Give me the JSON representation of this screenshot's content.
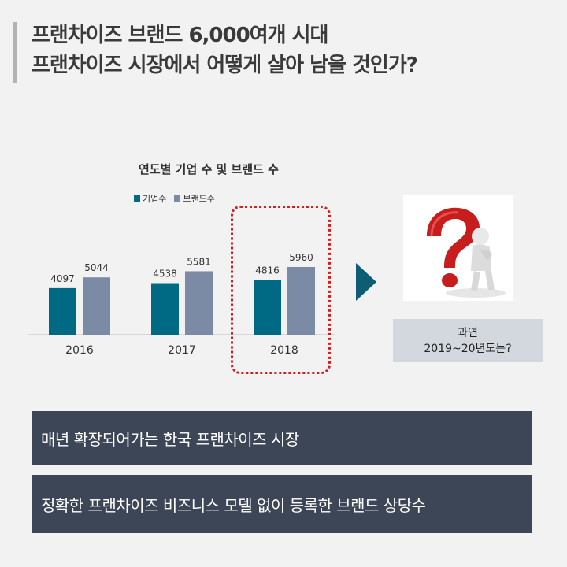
{
  "title": {
    "line1": "프랜차이즈 브랜드 6,000여개 시대",
    "line2": "프랜차이즈 시장에서 어떻게 살아 남을 것인가?"
  },
  "chart_data": {
    "type": "bar",
    "title": "연도별 기업 수 및 브랜드 수",
    "categories": [
      "2016",
      "2017",
      "2018"
    ],
    "series": [
      {
        "name": "기업수",
        "values": [
          4097,
          4538,
          4816
        ],
        "color": "#006a85"
      },
      {
        "name": "브랜드수",
        "values": [
          5044,
          5581,
          5960
        ],
        "color": "#7b8ba5"
      }
    ],
    "xlabel": "",
    "ylabel": "",
    "ylim": [
      0,
      7000
    ],
    "grid": false,
    "legend": "top-center",
    "highlighted_category": "2018",
    "highlight_color": "#d0201f"
  },
  "question": {
    "icon": "question-mark-figure",
    "line1": "과연",
    "line2": "2019~20년도는?"
  },
  "arrow_color": "#0d5d75",
  "banners": [
    "매년 확장되어가는 한국 프랜차이즈 시장",
    "정확한 프랜차이즈 비즈니스 모델 없이 등록한 브랜드 상당수"
  ]
}
